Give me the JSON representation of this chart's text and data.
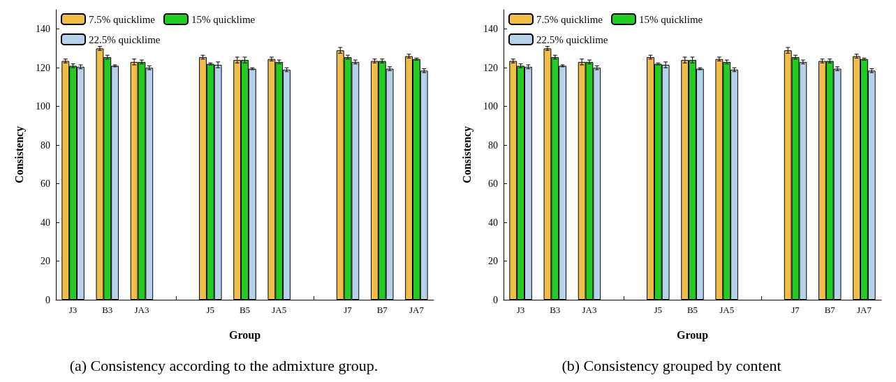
{
  "chart_data": [
    {
      "type": "bar",
      "title": "(a) Consistency according to the admixture group.",
      "xlabel": "Group",
      "ylabel": "Consistency",
      "categories": [
        "J3",
        "B3",
        "JA3",
        null,
        "J5",
        "B5",
        "JA5",
        null,
        "J7",
        "B7",
        "JA7"
      ],
      "ylim": [
        0,
        150
      ],
      "yticks": [
        0,
        20,
        40,
        60,
        80,
        100,
        120,
        140
      ],
      "legend": "top left",
      "series": [
        {
          "name": "7.5% quicklime",
          "color": "#f0be48",
          "values": [
            123.5,
            130,
            123,
            null,
            125.5,
            124,
            124.5,
            null,
            129,
            123.5,
            126
          ],
          "errors": [
            1,
            1,
            1.5,
            null,
            1,
            1.5,
            1,
            null,
            1.5,
            1,
            1
          ]
        },
        {
          "name": "15% quicklime",
          "color": "#22cc22",
          "values": [
            121,
            125.5,
            123,
            null,
            122,
            124,
            123,
            null,
            125.5,
            123.5,
            124.5
          ],
          "errors": [
            1,
            1,
            1,
            null,
            0.5,
            1.5,
            1,
            null,
            1,
            1,
            0.5
          ]
        },
        {
          "name": "22.5% quicklime",
          "color": "#b6d2ea",
          "values": [
            120.5,
            121,
            120,
            null,
            121.5,
            119.5,
            119,
            null,
            123,
            119.5,
            118.5
          ],
          "errors": [
            1,
            0.5,
            1,
            null,
            1.5,
            0.5,
            1,
            null,
            1,
            1,
            1
          ]
        }
      ]
    },
    {
      "type": "bar",
      "title": "(b) Consistency grouped by content",
      "xlabel": "Group",
      "ylabel": "Consistency",
      "categories": [
        "J3",
        "B3",
        "JA3",
        null,
        "J5",
        "B5",
        "JA5",
        null,
        "J7",
        "B7",
        "JA7"
      ],
      "ylim": [
        0,
        150
      ],
      "yticks": [
        0,
        20,
        40,
        60,
        80,
        100,
        120,
        140
      ],
      "legend": "top left",
      "series": [
        {
          "name": "7.5% quicklime",
          "color": "#f0be48",
          "values": [
            123.5,
            130,
            123,
            null,
            125.5,
            124,
            124.5,
            null,
            129,
            123.5,
            126
          ],
          "errors": [
            1,
            1,
            1.5,
            null,
            1,
            1.5,
            1,
            null,
            1.5,
            1,
            1
          ]
        },
        {
          "name": "15% quicklime",
          "color": "#22cc22",
          "values": [
            121,
            125.5,
            123,
            null,
            122,
            124,
            123,
            null,
            125.5,
            123.5,
            124.5
          ],
          "errors": [
            1,
            1,
            1,
            null,
            0.5,
            1.5,
            1,
            null,
            1,
            1,
            0.5
          ]
        },
        {
          "name": "22.5% quicklime",
          "color": "#b6d2ea",
          "values": [
            120.5,
            121,
            120,
            null,
            121.5,
            119.5,
            119,
            null,
            123,
            119.5,
            118.5
          ],
          "errors": [
            1,
            0.5,
            1,
            null,
            1.5,
            0.5,
            1,
            null,
            1,
            1,
            1
          ]
        }
      ]
    }
  ]
}
